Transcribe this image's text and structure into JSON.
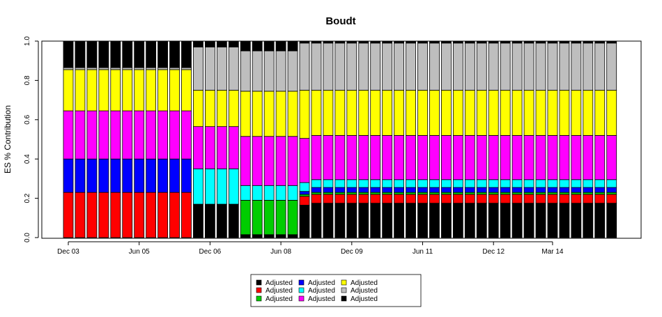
{
  "chart_data": {
    "type": "bar",
    "stacked": true,
    "title": "Boudt",
    "xlabel": "",
    "ylabel": "ES % Contribution",
    "ylim": [
      0,
      1
    ],
    "yticks": [
      "0.0",
      "0.2",
      "0.4",
      "0.6",
      "0.8",
      "1.0"
    ],
    "xtick_labels": [
      {
        "label": "Dec 03",
        "bar_index": 0
      },
      {
        "label": "Jun 05",
        "bar_index": 6
      },
      {
        "label": "Dec 06",
        "bar_index": 12
      },
      {
        "label": "Jun 08",
        "bar_index": 18
      },
      {
        "label": "Dec 09",
        "bar_index": 24
      },
      {
        "label": "Jun 11",
        "bar_index": 30
      },
      {
        "label": "Dec 12",
        "bar_index": 36
      },
      {
        "label": "Mar 14",
        "bar_index": 41
      }
    ],
    "bar_count": 47,
    "series": [
      {
        "name": "Adjusted",
        "color": "#000000"
      },
      {
        "name": "Adjusted",
        "color": "#ff0000"
      },
      {
        "name": "Adjusted",
        "color": "#00cd00"
      },
      {
        "name": "Adjusted",
        "color": "#0000ff"
      },
      {
        "name": "Adjusted",
        "color": "#00ffff"
      },
      {
        "name": "Adjusted",
        "color": "#ff00ff"
      },
      {
        "name": "Adjusted",
        "color": "#ffff00"
      },
      {
        "name": "Adjusted",
        "color": "#bebebe"
      },
      {
        "name": "Adjusted",
        "color": "#000000"
      }
    ],
    "segments": [
      {
        "bars": [
          0,
          10
        ],
        "values": [
          0,
          0.23,
          0,
          0.17,
          0,
          0.245,
          0.21,
          0.01,
          0.135
        ]
      },
      {
        "bars": [
          11,
          14
        ],
        "values": [
          0.17,
          0,
          0,
          0,
          0.18,
          0.215,
          0.185,
          0.22,
          0.03
        ]
      },
      {
        "bars": [
          15,
          19
        ],
        "values": [
          0.015,
          0,
          0.175,
          0,
          0.075,
          0.25,
          0.23,
          0.205,
          0.05
        ]
      },
      {
        "bars": [
          20,
          20
        ],
        "values": [
          0.165,
          0.045,
          0.01,
          0.015,
          0.045,
          0.225,
          0.245,
          0.24,
          0.01
        ]
      },
      {
        "bars": [
          21,
          46
        ],
        "values": [
          0.175,
          0.045,
          0.01,
          0.025,
          0.04,
          0.225,
          0.23,
          0.24,
          0.01
        ]
      }
    ],
    "grid": false,
    "legend": {
      "placement": "bottom",
      "columns": 3,
      "order": [
        0,
        1,
        2,
        3,
        4,
        5,
        6,
        7,
        8
      ]
    }
  }
}
